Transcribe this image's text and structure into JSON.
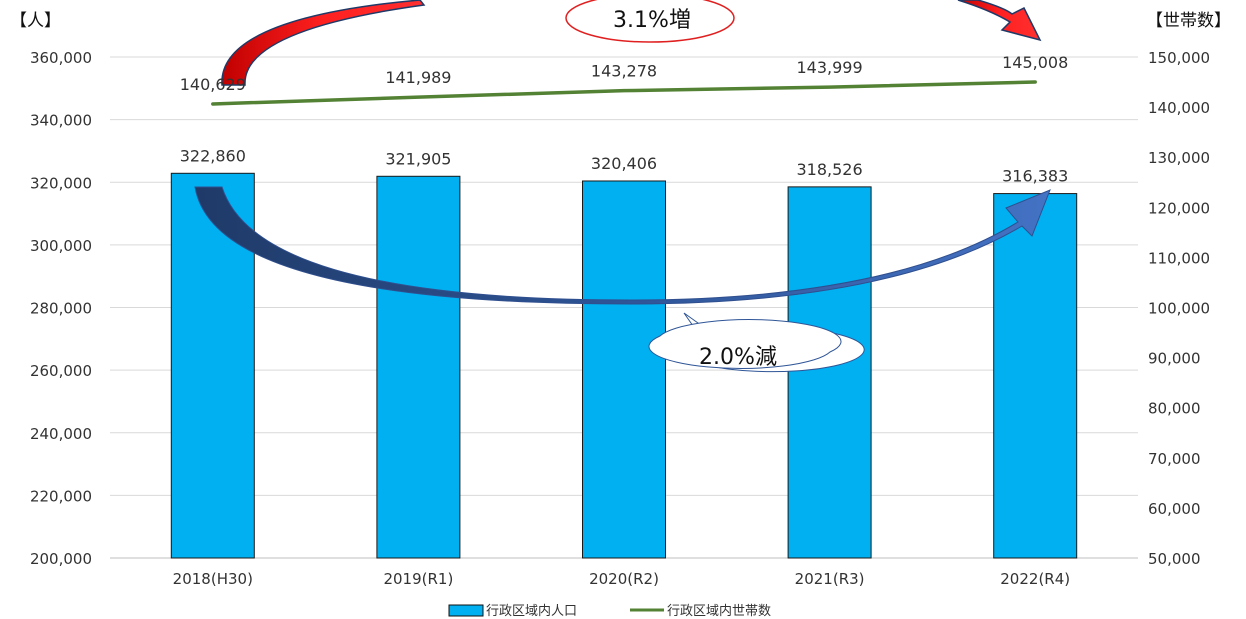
{
  "chart_data": {
    "type": "bar",
    "categories": [
      "2018(H30)",
      "2019(R1)",
      "2020(R2)",
      "2021(R3)",
      "2022(R4)"
    ],
    "series": [
      {
        "name": "行政区域内人口",
        "type": "bar",
        "axis": "left",
        "color": "#00B0F0",
        "values": [
          322860,
          321905,
          320406,
          318526,
          316383
        ],
        "labels": [
          "322,860",
          "321,905",
          "320,406",
          "318,526",
          "316,383"
        ]
      },
      {
        "name": "行政区域内世帯数",
        "type": "line",
        "axis": "right",
        "color": "#548235",
        "values": [
          140629,
          141989,
          143278,
          143999,
          145008
        ],
        "labels": [
          "140,629",
          "141,989",
          "143,278",
          "143,999",
          "145,008"
        ]
      }
    ],
    "y_left": {
      "unit_label": "【人】",
      "min": 200000,
      "max": 360000,
      "ticks": [
        200000,
        220000,
        240000,
        260000,
        280000,
        300000,
        320000,
        340000,
        360000
      ],
      "tick_labels": [
        "200,000",
        "220,000",
        "240,000",
        "260,000",
        "280,000",
        "300,000",
        "320,000",
        "340,000",
        "360,000"
      ]
    },
    "y_right": {
      "unit_label": "【世帯数】",
      "min": 50000,
      "max": 150000,
      "ticks": [
        50000,
        60000,
        70000,
        80000,
        90000,
        100000,
        110000,
        120000,
        130000,
        140000,
        150000
      ],
      "tick_labels": [
        "50,000",
        "60,000",
        "70,000",
        "80,000",
        "90,000",
        "100,000",
        "110,000",
        "120,000",
        "130,000",
        "140,000",
        "150,000"
      ]
    },
    "grid": true,
    "legend_position": "bottom",
    "annotations": {
      "increase": "3.1%増",
      "decrease": "2.0%減"
    }
  }
}
